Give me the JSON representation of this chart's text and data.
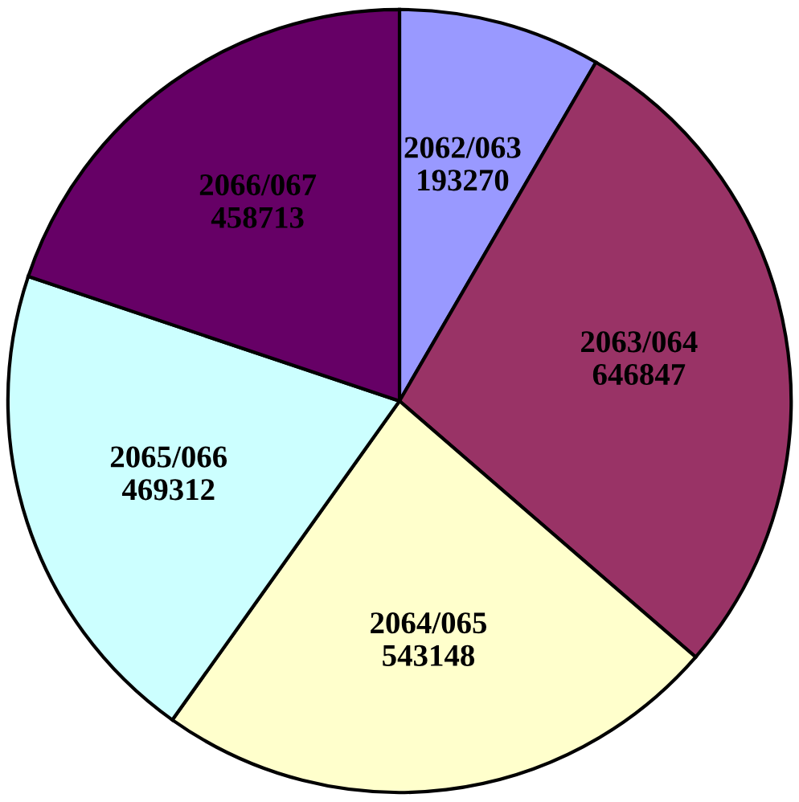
{
  "chart_data": {
    "type": "pie",
    "categories": [
      "2062/063",
      "2063/064",
      "2064/065",
      "2065/066",
      "2066/067"
    ],
    "values": [
      193270,
      646847,
      543148,
      469312,
      458713
    ],
    "colors": [
      "#9999ff",
      "#993366",
      "#ffffcc",
      "#ccffff",
      "#660066"
    ],
    "data_labels": true
  }
}
